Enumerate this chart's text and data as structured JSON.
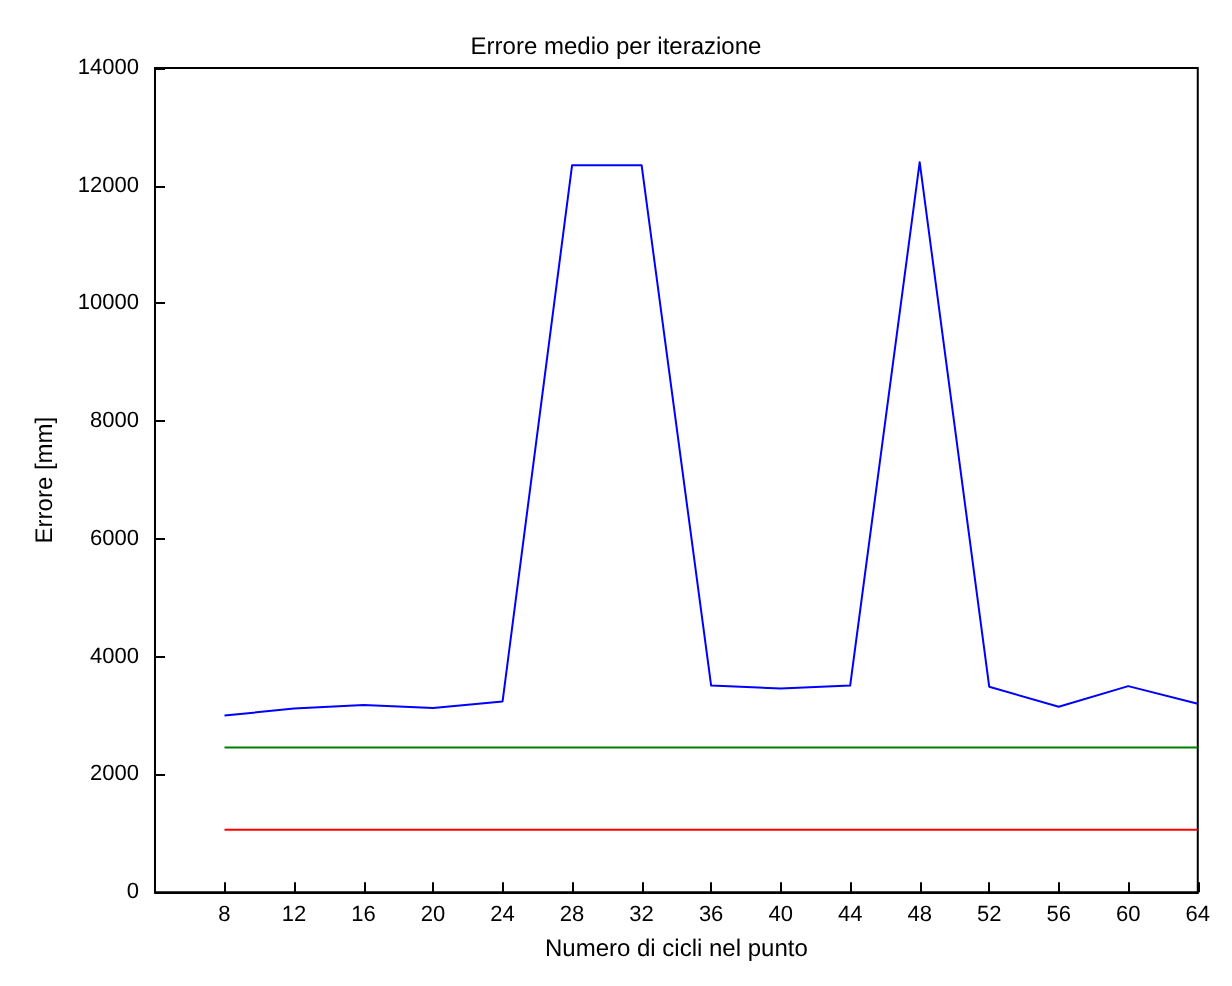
{
  "chart_data": {
    "type": "line",
    "title": "Errore medio per iterazione",
    "xlabel": "Numero di cicli nel punto",
    "ylabel": "Errore [mm]",
    "x": [
      8,
      12,
      16,
      20,
      24,
      28,
      32,
      36,
      40,
      44,
      48,
      52,
      56,
      60,
      64
    ],
    "series": [
      {
        "color": "#0000ff",
        "values": [
          3000,
          3120,
          3180,
          3130,
          3240,
          12350,
          12350,
          3510,
          3460,
          3510,
          12400,
          3490,
          3150,
          3500,
          3200
        ]
      },
      {
        "color": "#008000",
        "values": [
          2460,
          2460,
          2460,
          2460,
          2460,
          2460,
          2460,
          2460,
          2460,
          2460,
          2460,
          2460,
          2460,
          2460,
          2460
        ]
      },
      {
        "color": "#ff0000",
        "values": [
          1060,
          1060,
          1060,
          1060,
          1060,
          1060,
          1060,
          1060,
          1060,
          1060,
          1060,
          1060,
          1060,
          1060,
          1060
        ]
      }
    ],
    "xlim": [
      4,
      64
    ],
    "xticks": [
      8,
      12,
      16,
      20,
      24,
      28,
      32,
      36,
      40,
      44,
      48,
      52,
      56,
      60,
      64
    ],
    "ylim": [
      0,
      14000
    ],
    "yticks": [
      0,
      2000,
      4000,
      6000,
      8000,
      10000,
      12000,
      14000
    ],
    "grid": false,
    "marker": "none",
    "line_style": "solid"
  }
}
